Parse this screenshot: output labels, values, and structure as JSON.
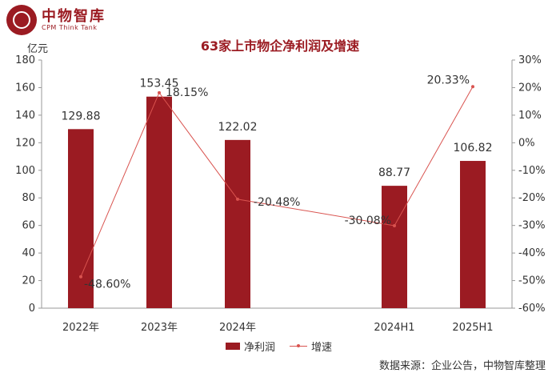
{
  "brand": {
    "name_cn": "中物智库",
    "name_en": "CPM Think Tank",
    "color": "#9b1b22"
  },
  "chart_data": {
    "type": "bar",
    "title": "63家上市物企净利润及增速",
    "unit_left": "亿元",
    "categories": [
      "2022年",
      "2023年",
      "2024年",
      "",
      "2024H1",
      "2025H1"
    ],
    "series": [
      {
        "name": "净利润",
        "kind": "bar",
        "axis": "left",
        "color": "#9b1b22",
        "values": [
          129.88,
          153.45,
          122.02,
          null,
          88.77,
          106.82
        ],
        "labels": [
          "129.88",
          "153.45",
          "122.02",
          "",
          "88.77",
          "106.82"
        ]
      },
      {
        "name": "增速",
        "kind": "line",
        "axis": "right",
        "color": "#d9534f",
        "values": [
          -48.6,
          18.15,
          -20.48,
          null,
          -30.08,
          20.33
        ],
        "labels": [
          "-48.60%",
          "18.15%",
          "-20.48%",
          "",
          "-30.08%",
          "20.33%"
        ]
      }
    ],
    "y_left": {
      "min": 0,
      "max": 180,
      "step": 20,
      "ticks": [
        "0",
        "20",
        "40",
        "60",
        "80",
        "100",
        "120",
        "140",
        "160",
        "180"
      ]
    },
    "y_right": {
      "min": -60,
      "max": 30,
      "step": 10,
      "ticks": [
        "-60%",
        "-50%",
        "-40%",
        "-30%",
        "-20%",
        "-10%",
        "0%",
        "10%",
        "20%",
        "30%"
      ]
    },
    "grid": false,
    "legend_position": "bottom"
  },
  "source": "数据来源：企业公告，中物智库整理"
}
